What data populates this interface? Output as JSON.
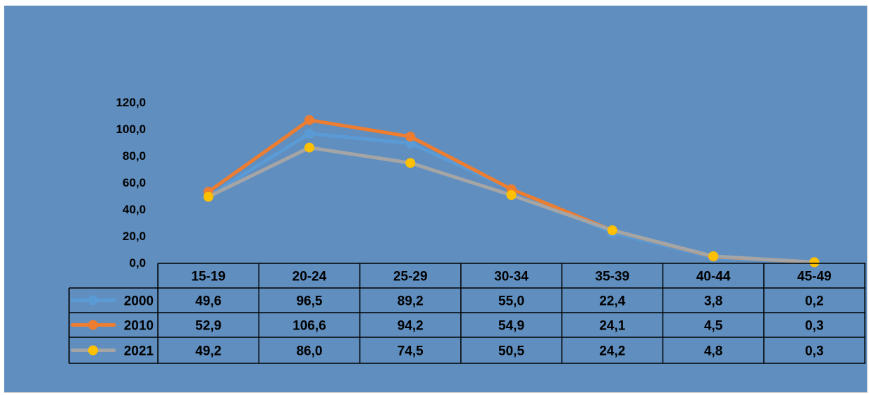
{
  "chart_data": {
    "type": "line",
    "title": "",
    "xlabel": "",
    "ylabel": "",
    "ylim": [
      0,
      120
    ],
    "y_ticks": [
      "0,0",
      "20,0",
      "40,0",
      "60,0",
      "80,0",
      "100,0",
      "120,0"
    ],
    "categories": [
      "15-19",
      "20-24",
      "25-29",
      "30-34",
      "35-39",
      "40-44",
      "45-49"
    ],
    "legend_placement": "data-table",
    "grid": false,
    "series": [
      {
        "name": "2000",
        "color": "#5b9bd5",
        "values": [
          49.6,
          96.5,
          89.2,
          55.0,
          22.4,
          3.8,
          0.2
        ],
        "labels": [
          "49,6",
          "96,5",
          "89,2",
          "55,0",
          "22,4",
          "3,8",
          "0,2"
        ]
      },
      {
        "name": "2010",
        "color": "#ed7d31",
        "values": [
          52.9,
          106.6,
          94.2,
          54.9,
          24.1,
          4.5,
          0.3
        ],
        "labels": [
          "52,9",
          "106,6",
          "94,2",
          "54,9",
          "24,1",
          "4,5",
          "0,3"
        ]
      },
      {
        "name": "2021",
        "color": "#a5a5a5",
        "marker_color": "#ffc000",
        "values": [
          49.2,
          86.0,
          74.5,
          50.5,
          24.2,
          4.8,
          0.3
        ],
        "labels": [
          "49,2",
          "86,0",
          "74,5",
          "50,5",
          "24,2",
          "4,8",
          "0,3"
        ]
      }
    ]
  }
}
